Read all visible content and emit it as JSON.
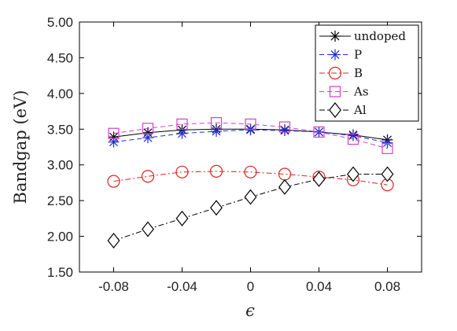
{
  "chart_data": {
    "type": "line",
    "xlabel": "ϵ",
    "ylabel": "Bandgap (eV)",
    "xlim": [
      -0.1,
      0.1
    ],
    "ylim": [
      1.5,
      5.0
    ],
    "x": [
      -0.08,
      -0.06,
      -0.04,
      -0.02,
      0,
      0.02,
      0.04,
      0.06,
      0.08
    ],
    "x_tick_labels": [
      "-0.08",
      "-0.04",
      "0",
      "0.04",
      "0.08"
    ],
    "x_tick_values": [
      -0.08,
      -0.04,
      0,
      0.04,
      0.08
    ],
    "y_tick_labels": [
      "1.50",
      "2.00",
      "2.50",
      "3.00",
      "3.50",
      "4.00",
      "4.50",
      "5.00"
    ],
    "y_tick_values": [
      1.5,
      2.0,
      2.5,
      3.0,
      3.5,
      4.0,
      4.5,
      5.0
    ],
    "grid": false,
    "legend_position": "top-right",
    "series": [
      {
        "name": "undoped",
        "marker": "asterisk",
        "dash": "solid",
        "color": "#000000",
        "values": [
          3.39,
          3.45,
          3.49,
          3.5,
          3.5,
          3.49,
          3.46,
          3.42,
          3.35
        ]
      },
      {
        "name": "P",
        "marker": "asterisk",
        "dash": "dash",
        "color": "#1f2fd6",
        "values": [
          3.32,
          3.38,
          3.44,
          3.47,
          3.49,
          3.48,
          3.46,
          3.41,
          3.31
        ]
      },
      {
        "name": "B",
        "marker": "circle",
        "dash": "dashdot",
        "color": "#e02020",
        "values": [
          2.77,
          2.84,
          2.9,
          2.91,
          2.9,
          2.87,
          2.83,
          2.79,
          2.72
        ]
      },
      {
        "name": "As",
        "marker": "square",
        "dash": "dash",
        "color": "#d040d0",
        "values": [
          3.44,
          3.51,
          3.57,
          3.59,
          3.57,
          3.53,
          3.46,
          3.36,
          3.23
        ]
      },
      {
        "name": "Al",
        "marker": "diamond",
        "dash": "dashdot",
        "color": "#000000",
        "values": [
          1.94,
          2.1,
          2.25,
          2.4,
          2.55,
          2.69,
          2.8,
          2.87,
          2.87
        ]
      }
    ]
  }
}
